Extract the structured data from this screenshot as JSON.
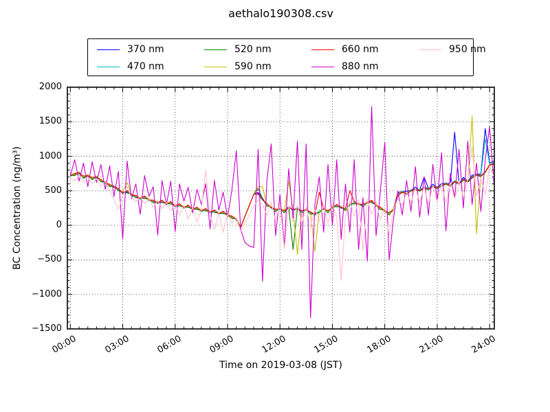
{
  "chart_data": {
    "type": "line",
    "title": "aethalo190308.csv",
    "xlabel": "Time on 2019-03-08 (JST)",
    "ylabel": "BC Concentration (ng/m³)",
    "xlim_hours": [
      -0.17,
      24.27
    ],
    "ylim": [
      -1500,
      2000
    ],
    "x_ticks_hours": [
      0,
      3,
      6,
      9,
      12,
      15,
      18,
      21,
      24
    ],
    "x_tick_labels": [
      "00:00",
      "03:00",
      "06:00",
      "09:00",
      "12:00",
      "15:00",
      "18:00",
      "21:00",
      "24:00"
    ],
    "y_ticks": [
      2000,
      1500,
      1000,
      500,
      0,
      -500,
      -1000,
      -1500
    ],
    "y_tick_labels": [
      "2000",
      "1500",
      "1000",
      "500",
      "0",
      "−500",
      "−1000",
      "−1500"
    ],
    "x_minor_step_hours": 0.5,
    "y_minor_step": 100,
    "grid": "dotted",
    "legend_position": "top outside, 2 rows x 4 columns",
    "x_hours": [
      0,
      0.25,
      0.5,
      0.75,
      1,
      1.25,
      1.5,
      1.75,
      2,
      2.25,
      2.5,
      2.75,
      3,
      3.25,
      3.5,
      3.75,
      4,
      4.25,
      4.5,
      4.75,
      5,
      5.25,
      5.5,
      5.75,
      6,
      6.25,
      6.5,
      6.75,
      7,
      7.25,
      7.5,
      7.75,
      8,
      8.25,
      8.5,
      8.75,
      9,
      9.25,
      9.5,
      9.75,
      10,
      10.25,
      10.5,
      10.75,
      11,
      11.25,
      11.5,
      11.75,
      12,
      12.25,
      12.5,
      12.75,
      13,
      13.25,
      13.5,
      13.75,
      14,
      14.25,
      14.5,
      14.75,
      15,
      15.25,
      15.5,
      15.75,
      16,
      16.25,
      16.5,
      16.75,
      17,
      17.25,
      17.5,
      17.75,
      18,
      18.25,
      18.5,
      18.75,
      19,
      19.25,
      19.5,
      19.75,
      20,
      20.25,
      20.5,
      20.75,
      21,
      21.25,
      21.5,
      21.75,
      22,
      22.25,
      22.5,
      22.75,
      23,
      23.25,
      23.5,
      23.75,
      24,
      24.25
    ],
    "series": [
      {
        "name": "370 nm",
        "color": "#0000ff",
        "values": [
          735,
          730,
          775,
          690,
          735,
          670,
          715,
          640,
          635,
          570,
          575,
          510,
          485,
          480,
          455,
          410,
          405,
          400,
          385,
          340,
          345,
          340,
          325,
          320,
          295,
          290,
          275,
          270,
          245,
          240,
          225,
          220,
          205,
          200,
          185,
          180,
          165,
          110,
          105,
          -30,
          135,
          295,
          455,
          475,
          395,
          290,
          275,
          210,
          255,
          190,
          275,
          210,
          255,
          190,
          245,
          170,
          175,
          190,
          255,
          190,
          275,
          280,
          275,
          220,
          315,
          320,
          325,
          280,
          345,
          340,
          305,
          240,
          225,
          160,
          245,
          475,
          490,
          495,
          510,
          555,
          510,
          700,
          530,
          595,
          550,
          605,
          610,
          605,
          1350,
          610,
          695,
          640,
          725,
          740,
          745,
          1400,
          905,
          930
        ]
      },
      {
        "name": "470 nm",
        "color": "#00bfbf",
        "values": [
          705,
          750,
          745,
          710,
          705,
          690,
          685,
          660,
          605,
          590,
          545,
          530,
          455,
          500,
          425,
          430,
          375,
          420,
          355,
          360,
          315,
          360,
          295,
          340,
          265,
          310,
          245,
          290,
          215,
          260,
          195,
          240,
          175,
          220,
          155,
          200,
          135,
          130,
          75,
          -35,
          130,
          290,
          450,
          450,
          365,
          310,
          245,
          230,
          225,
          210,
          245,
          230,
          225,
          210,
          215,
          190,
          145,
          210,
          225,
          210,
          245,
          300,
          245,
          240,
          285,
          340,
          295,
          300,
          315,
          360,
          275,
          260,
          195,
          180,
          215,
          455,
          495,
          475,
          515,
          535,
          515,
          555,
          535,
          575,
          555,
          585,
          615,
          585,
          645,
          615,
          675,
          645,
          705,
          745,
          725,
          1250,
          885,
          915
        ]
      },
      {
        "name": "520 nm",
        "color": "#008000",
        "values": [
          725,
          720,
          765,
          680,
          725,
          660,
          705,
          630,
          625,
          560,
          565,
          500,
          475,
          470,
          445,
          400,
          395,
          390,
          375,
          330,
          335,
          330,
          315,
          310,
          285,
          280,
          265,
          260,
          235,
          230,
          215,
          210,
          195,
          190,
          175,
          170,
          155,
          100,
          95,
          -30,
          130,
          290,
          452,
          530,
          385,
          280,
          265,
          200,
          245,
          180,
          265,
          -350,
          245,
          180,
          235,
          160,
          165,
          180,
          245,
          180,
          265,
          270,
          265,
          210,
          305,
          310,
          315,
          270,
          335,
          330,
          295,
          230,
          215,
          150,
          235,
          435,
          475,
          455,
          495,
          515,
          495,
          535,
          515,
          555,
          535,
          565,
          595,
          565,
          625,
          595,
          655,
          625,
          685,
          725,
          705,
          765,
          865,
          895
        ]
      },
      {
        "name": "590 nm",
        "color": "#bfbf00",
        "values": [
          735,
          735,
          775,
          695,
          735,
          675,
          715,
          645,
          635,
          575,
          575,
          515,
          485,
          620,
          455,
          415,
          405,
          405,
          385,
          345,
          345,
          345,
          325,
          325,
          295,
          295,
          275,
          275,
          245,
          245,
          225,
          225,
          205,
          205,
          185,
          185,
          165,
          115,
          105,
          -25,
          140,
          300,
          455,
          560,
          560,
          295,
          275,
          215,
          255,
          195,
          640,
          215,
          -420,
          195,
          245,
          175,
          -380,
          195,
          255,
          195,
          275,
          285,
          275,
          225,
          315,
          325,
          325,
          285,
          345,
          345,
          305,
          245,
          225,
          165,
          245,
          445,
          485,
          465,
          505,
          525,
          505,
          545,
          525,
          565,
          545,
          575,
          605,
          575,
          635,
          605,
          665,
          635,
          1580,
          -120,
          715,
          775,
          875,
          905
        ]
      },
      {
        "name": "660 nm",
        "color": "#ff0000",
        "values": [
          715,
          755,
          755,
          715,
          715,
          695,
          695,
          665,
          615,
          595,
          555,
          535,
          465,
          505,
          435,
          435,
          385,
          425,
          365,
          365,
          325,
          365,
          305,
          345,
          275,
          315,
          255,
          295,
          225,
          265,
          205,
          245,
          185,
          225,
          165,
          205,
          145,
          135,
          85,
          -28,
          132,
          292,
          448,
          455,
          375,
          315,
          255,
          235,
          235,
          215,
          255,
          235,
          235,
          215,
          225,
          195,
          155,
          480,
          235,
          215,
          255,
          305,
          255,
          245,
          500,
          345,
          305,
          305,
          325,
          365,
          285,
          265,
          205,
          185,
          225,
          425,
          485,
          445,
          505,
          525,
          505,
          545,
          525,
          565,
          545,
          575,
          605,
          575,
          635,
          605,
          665,
          635,
          695,
          735,
          715,
          775,
          875,
          880
        ]
      },
      {
        "name": "880 nm",
        "color": "#cc00cc",
        "values": [
          720,
          950,
          640,
          900,
          560,
          920,
          620,
          880,
          520,
          860,
          420,
          780,
          -200,
          930,
          380,
          600,
          160,
          720,
          420,
          560,
          -140,
          650,
          300,
          640,
          -90,
          600,
          350,
          550,
          180,
          520,
          300,
          600,
          -50,
          650,
          220,
          480,
          120,
          520,
          1080,
          -60,
          -250,
          -300,
          -320,
          1100,
          -810,
          640,
          1180,
          -150,
          450,
          -300,
          820,
          100,
          1220,
          -350,
          1180,
          -1340,
          300,
          700,
          -100,
          880,
          0,
          950,
          -200,
          600,
          -100,
          950,
          -350,
          400,
          -520,
          1720,
          -150,
          500,
          1200,
          -500,
          100,
          500,
          150,
          650,
          200,
          850,
          120,
          700,
          150,
          880,
          350,
          1050,
          -80,
          750,
          400,
          1100,
          250,
          1220,
          300,
          900,
          200,
          950,
          1430,
          600
        ]
      },
      {
        "name": "950 nm",
        "color": "#ffc0cb",
        "values": [
          690,
          640,
          730,
          620,
          700,
          600,
          680,
          560,
          640,
          500,
          380,
          230,
          430,
          560,
          400,
          340,
          420,
          310,
          390,
          260,
          360,
          240,
          330,
          210,
          310,
          150,
          290,
          90,
          260,
          40,
          230,
          800,
          150,
          -60,
          180,
          -100,
          160,
          30,
          110,
          -90,
          35,
          155,
          280,
          360,
          300,
          150,
          330,
          60,
          310,
          -350,
          290,
          50,
          290,
          20,
          280,
          -30,
          230,
          60,
          290,
          30,
          310,
          120,
          -800,
          140,
          350,
          130,
          370,
          -370,
          380,
          160,
          340,
          80,
          260,
          -150,
          230,
          380,
          290,
          480,
          330,
          540,
          330,
          560,
          300,
          580,
          340,
          600,
          320,
          620,
          380,
          640,
          400,
          660,
          1140,
          420,
          680,
          450,
          860,
          700
        ]
      }
    ]
  }
}
